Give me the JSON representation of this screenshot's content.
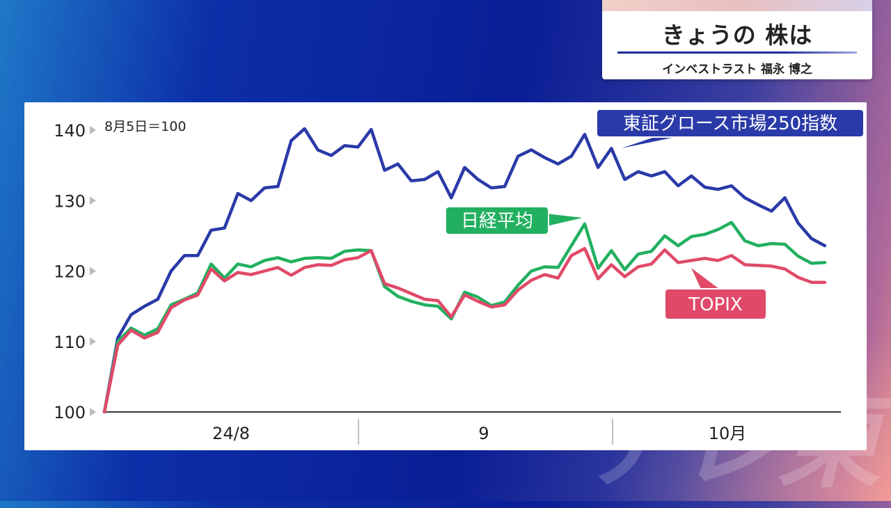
{
  "header": {
    "title": "きょうの 株は",
    "subtitle": "インベストラスト 福永 博之"
  },
  "chart_data": {
    "type": "line",
    "note": "8月5日＝100",
    "y_ticks": [
      "140",
      "130",
      "120",
      "110",
      "100"
    ],
    "ylim": [
      100,
      140
    ],
    "x_labels": [
      "24/8",
      "9",
      "10月"
    ],
    "series": [
      {
        "name": "東証グロース市場250指数",
        "color": "#2a3aa8",
        "values": [
          100,
          110.5,
          113.8,
          115,
          116,
          120,
          122.2,
          122.2,
          125.8,
          126.1,
          131,
          130,
          131.8,
          132,
          138.5,
          140.2,
          137.2,
          136.4,
          137.8,
          137.6,
          140.1,
          134.3,
          135.2,
          132.8,
          133,
          134.1,
          130.4,
          134.7,
          133,
          131.8,
          132,
          136.3,
          137.2,
          136.1,
          135.2,
          136.3,
          139.4,
          134.7,
          137.4,
          133,
          134.1,
          133.5,
          134.1,
          132.1,
          133.5,
          131.9,
          131.6,
          132.1,
          130.4,
          129.4,
          128.5,
          130.4,
          126.8,
          124.6,
          123.6
        ]
      },
      {
        "name": "日経平均",
        "color": "#22b060",
        "values": [
          100,
          110,
          111.9,
          110.9,
          111.8,
          115.2,
          116,
          116.9,
          121,
          119,
          121,
          120.6,
          121.5,
          121.9,
          121.3,
          121.8,
          121.9,
          121.8,
          122.8,
          123,
          122.9,
          117.8,
          116.4,
          115.7,
          115.2,
          115,
          113.2,
          117,
          116.3,
          115.1,
          115.6,
          118,
          120,
          120.6,
          120.5,
          123.6,
          126.7,
          120.4,
          122.9,
          120.2,
          122.4,
          122.8,
          125,
          123.6,
          124.9,
          125.2,
          125.9,
          126.9,
          124.3,
          123.6,
          123.9,
          123.8,
          122.1,
          121.1,
          121.2
        ]
      },
      {
        "name": "TOPIX",
        "color": "#e04a68",
        "values": [
          100,
          109.5,
          111.6,
          110.5,
          111.3,
          114.8,
          115.9,
          116.6,
          120.3,
          118.6,
          119.8,
          119.5,
          120,
          120.5,
          119.4,
          120.5,
          120.9,
          120.8,
          121.6,
          121.9,
          122.9,
          118.2,
          117.6,
          116.8,
          116,
          115.8,
          113.5,
          116.6,
          115.7,
          114.9,
          115.2,
          117.3,
          118.7,
          119.5,
          119,
          122.2,
          123.2,
          118.9,
          120.9,
          119.2,
          120.6,
          121,
          123,
          121.2,
          121.5,
          121.8,
          121.5,
          122.2,
          120.9,
          120.8,
          120.7,
          120.3,
          119.1,
          118.4,
          118.4
        ]
      }
    ],
    "grid": false,
    "legend": "inline-labels"
  }
}
